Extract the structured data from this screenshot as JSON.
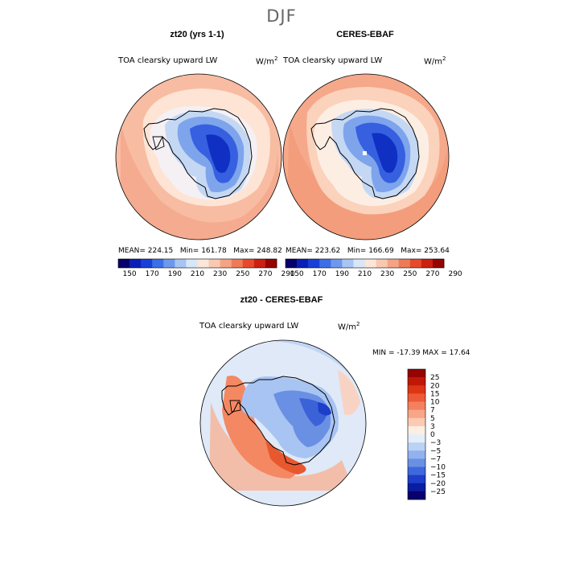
{
  "figure": {
    "season": "DJF"
  },
  "panels": [
    {
      "title": "zt20 (yrs 1-1)",
      "variable": "TOA clearsky upward LW",
      "units_base": "W/m",
      "units_exp": "2",
      "stats": {
        "mean": "MEAN= 224.15",
        "min": "Min= 161.78",
        "max": "Max= 248.82"
      }
    },
    {
      "title": "CERES-EBAF",
      "variable": "TOA clearsky upward LW",
      "units_base": "W/m",
      "units_exp": "2",
      "stats": {
        "mean": "MEAN= 223.62",
        "min": "Min= 166.69",
        "max": "Max= 253.64"
      }
    }
  ],
  "difference": {
    "title": "zt20 - CERES-EBAF",
    "variable": "TOA clearsky upward LW",
    "units_base": "W/m",
    "units_exp": "2",
    "minmax": "MIN = -17.39 MAX =  17.64"
  },
  "colorbar_main": {
    "ticks": [
      "150",
      "170",
      "190",
      "210",
      "230",
      "250",
      "270",
      "290"
    ],
    "colors": [
      "#08006e",
      "#0a1fb4",
      "#1840d8",
      "#3c6ee6",
      "#6e98ee",
      "#a8c4f2",
      "#d8e6f8",
      "#fbe6d8",
      "#f8c8b0",
      "#f4a484",
      "#ee7a58",
      "#e64a2c",
      "#cc2010",
      "#960400"
    ]
  },
  "colorbar_diff": {
    "labels": [
      "25",
      "20",
      "15",
      "10",
      "7",
      "5",
      "3",
      "0",
      "−3",
      "−5",
      "−7",
      "−10",
      "−15",
      "−20",
      "−25"
    ],
    "colors": [
      "#960400",
      "#c01808",
      "#dc3614",
      "#ee5a36",
      "#f48060",
      "#f8a688",
      "#fbcab2",
      "#fdeee2",
      "#e4eefa",
      "#bcd2f4",
      "#92b2ee",
      "#6a90e4",
      "#3e68dc",
      "#1c3ec8",
      "#0a1ca0",
      "#08006e"
    ]
  },
  "chart_data": [
    {
      "type": "heatmap",
      "title": "zt20 (yrs 1-1)",
      "subtitle": "TOA clearsky upward LW",
      "units": "W/m2",
      "mean": 224.15,
      "min": 161.78,
      "max": 248.82,
      "colorbar_ticks": [
        150,
        170,
        190,
        210,
        230,
        250,
        270,
        290
      ]
    },
    {
      "type": "heatmap",
      "title": "CERES-EBAF",
      "subtitle": "TOA clearsky upward LW",
      "units": "W/m2",
      "mean": 223.62,
      "min": 166.69,
      "max": 253.64,
      "colorbar_ticks": [
        150,
        170,
        190,
        210,
        230,
        250,
        270,
        290
      ]
    },
    {
      "type": "heatmap",
      "title": "zt20 - CERES-EBAF",
      "subtitle": "TOA clearsky upward LW",
      "units": "W/m2",
      "min": -17.39,
      "max": 17.64,
      "colorbar_ticks": [
        -25,
        -20,
        -15,
        -10,
        -7,
        -5,
        -3,
        0,
        3,
        5,
        7,
        10,
        15,
        20,
        25
      ]
    }
  ]
}
